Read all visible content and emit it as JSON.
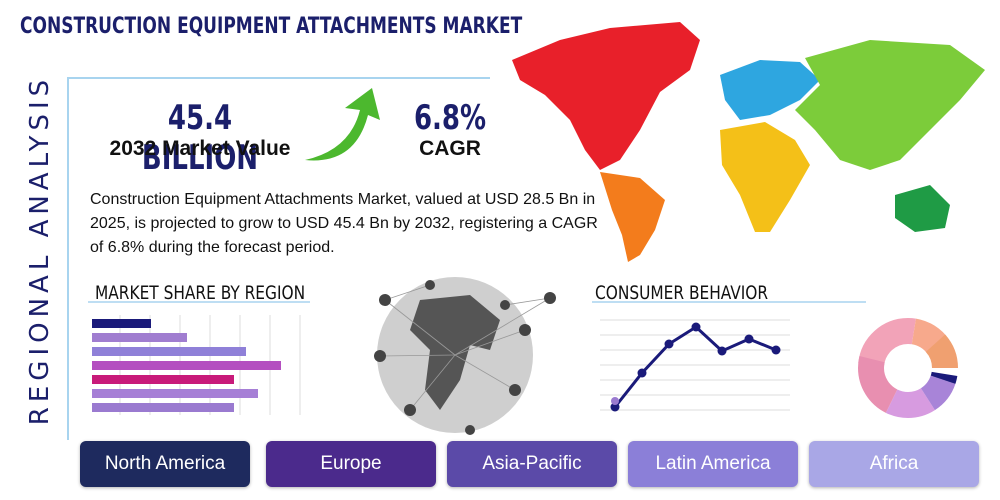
{
  "header": {
    "title": "CONSTRUCTION EQUIPMENT ATTACHMENTS MARKET",
    "side_label": "REGIONAL ANALYSIS"
  },
  "stats": [
    {
      "value": "45.4 BILLION",
      "label": "2032 Market Value"
    },
    {
      "value": "6.8%",
      "label": "CAGR"
    }
  ],
  "description": "Construction Equipment Attachments Market, valued at USD 28.5 Bn in 2025, is projected to grow to USD 45.4 Bn by 2032, registering a CAGR of 6.8% during the forecast period.",
  "sections": {
    "market_share": "MARKET SHARE BY REGION",
    "consumer_behavior": "CONSUMER BEHAVIOR"
  },
  "regions": [
    "North America",
    "Europe",
    "Asia-Pacific",
    "Latin America",
    "Africa"
  ]
}
